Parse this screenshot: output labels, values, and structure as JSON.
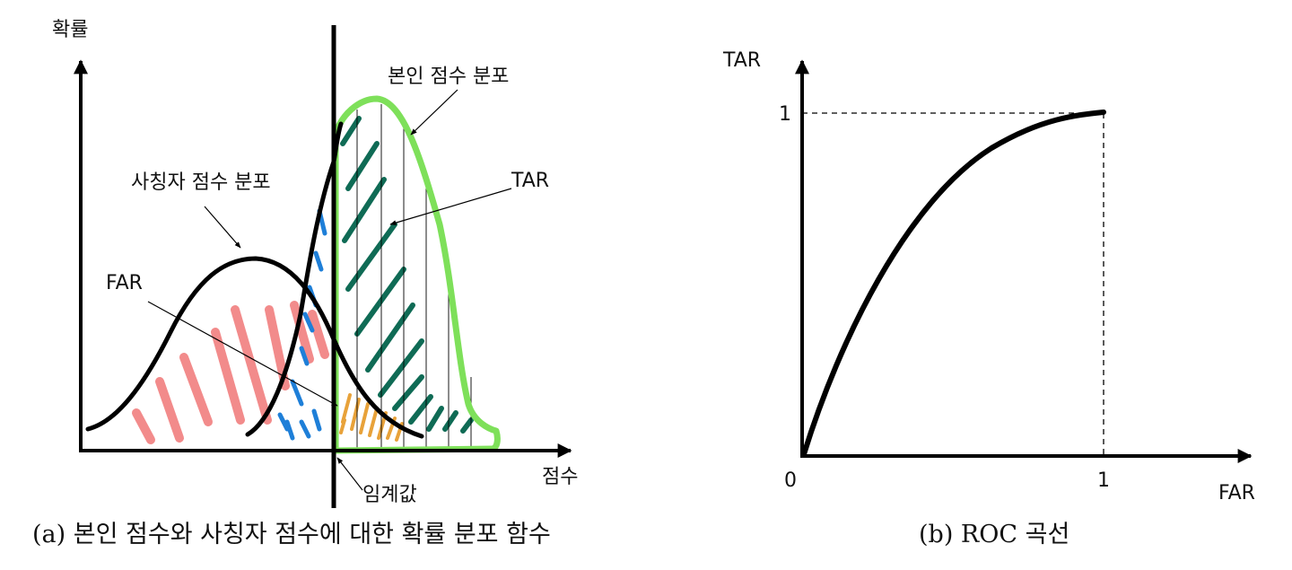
{
  "left_panel": {
    "y_axis_label": "확률",
    "x_axis_label": "점수",
    "impostor_label": "사칭자 점수 분포",
    "genuine_label": "본인 점수 분포",
    "far_label": "FAR",
    "tar_label": "TAR",
    "threshold_label": "임계값",
    "caption": "(a) 본인 점수와 사칭자 점수에 대한 확률 분포 함수"
  },
  "right_panel": {
    "y_axis_label": "TAR",
    "x_axis_label": "FAR",
    "origin_label": "0",
    "y_tick_label": "1",
    "x_tick_label": "1",
    "caption": "(b) ROC 곡선"
  },
  "colors": {
    "far_hatch": "#f28b8b",
    "overlap_blue": "#1e7fd8",
    "tar_hatch": "#0f6b55",
    "genuine_outline": "#7ee05a",
    "overlap_orange": "#e8a23a",
    "line": "#000000"
  }
}
